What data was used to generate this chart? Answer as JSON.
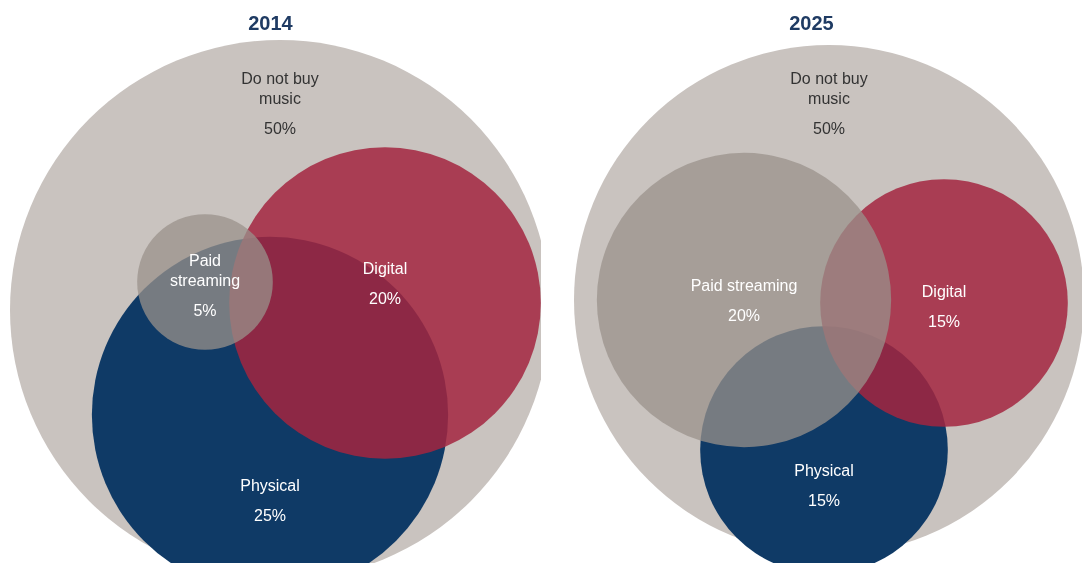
{
  "chart_data": [
    {
      "type": "other",
      "title": "2014",
      "categories": [
        "Do not buy music",
        "Paid streaming",
        "Digital",
        "Physical"
      ],
      "values": [
        50,
        5,
        20,
        25
      ],
      "value_labels": [
        "50%",
        "5%",
        "20%",
        "25%"
      ],
      "colors": [
        "#c9c3bf",
        "#9a918b",
        "#a3263f",
        "#0f3a66"
      ]
    },
    {
      "type": "other",
      "title": "2025",
      "categories": [
        "Do not buy music",
        "Paid streaming",
        "Digital",
        "Physical"
      ],
      "values": [
        50,
        20,
        15,
        15
      ],
      "value_labels": [
        "50%",
        "20%",
        "15%",
        "15%"
      ],
      "colors": [
        "#c9c3bf",
        "#9a918b",
        "#a3263f",
        "#0f3a66"
      ]
    }
  ]
}
